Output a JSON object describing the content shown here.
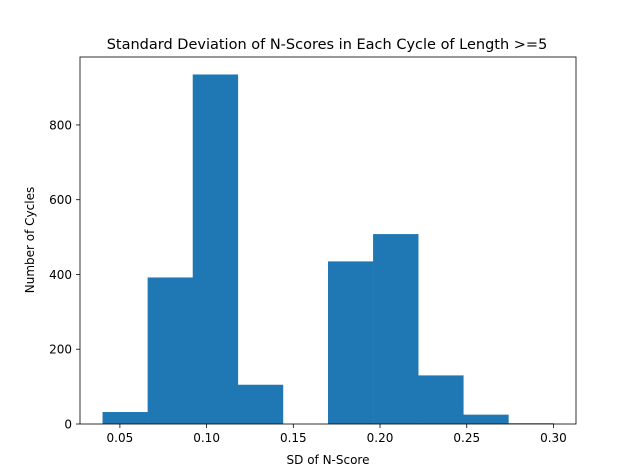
{
  "chart_data": {
    "type": "bar",
    "title": "Standard Deviation of N-Scores in Each Cycle of Length >=5",
    "xlabel": "SD of N-Score",
    "ylabel": "Number of Cycles",
    "bin_edges": [
      0.04,
      0.066,
      0.092,
      0.118,
      0.144,
      0.17,
      0.196,
      0.222,
      0.248,
      0.274,
      0.3
    ],
    "values": [
      32,
      392,
      935,
      105,
      0,
      435,
      508,
      130,
      25,
      2
    ],
    "xlim": [
      0.027,
      0.313
    ],
    "ylim": [
      0,
      981.75
    ],
    "xticks": [
      0.05,
      0.1,
      0.15,
      0.2,
      0.25,
      0.3
    ],
    "xtick_labels": [
      "0.05",
      "0.10",
      "0.15",
      "0.20",
      "0.25",
      "0.30"
    ],
    "yticks": [
      0,
      200,
      400,
      600,
      800
    ],
    "ytick_labels": [
      "0",
      "200",
      "400",
      "600",
      "800"
    ],
    "bar_color": "#1f77b4",
    "grid": false,
    "legend": "none"
  }
}
